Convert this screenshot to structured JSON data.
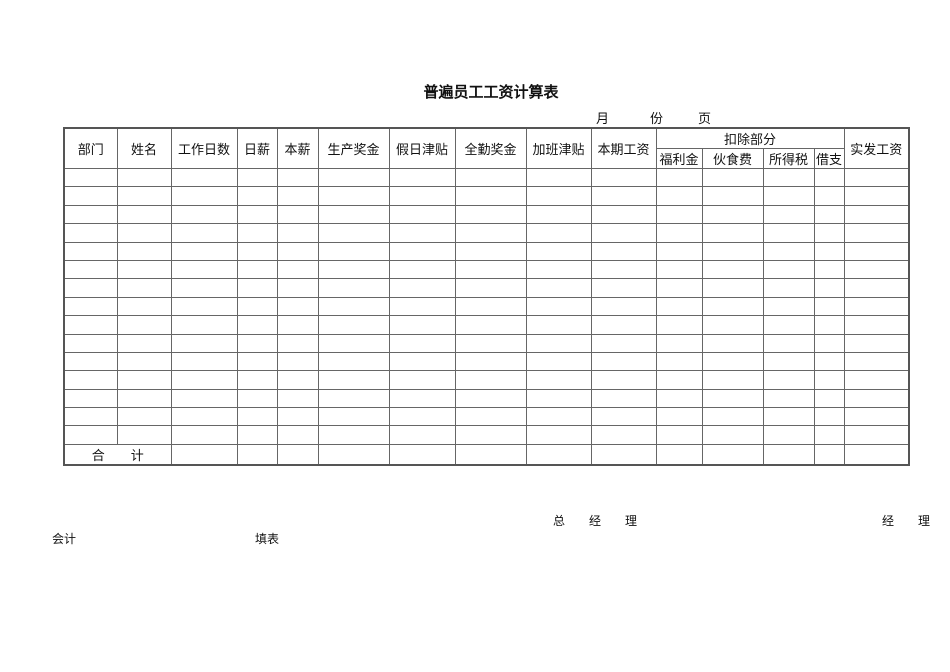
{
  "title": "普遍员工工资计算表",
  "meta": {
    "month": "月",
    "part": "份",
    "page": "页"
  },
  "headers": {
    "dept": "部门",
    "name": "姓名",
    "workdays": "工作日数",
    "daily": "日薪",
    "base": "本薪",
    "production_bonus": "生产奖金",
    "holiday_allowance": "假日津贴",
    "attendance_bonus": "全勤奖金",
    "overtime_allowance": "加班津贴",
    "period_salary": "本期工资",
    "deductions": "扣除部分",
    "welfare": "福利金",
    "meals": "伙食费",
    "income_tax": "所得税",
    "advance": "借支",
    "net_pay": "实发工资"
  },
  "total_label": "合　　计",
  "signatures": {
    "general_manager": "总　　经　　理",
    "manager": "经　　理",
    "accountant": "会计",
    "preparer": "填表"
  }
}
